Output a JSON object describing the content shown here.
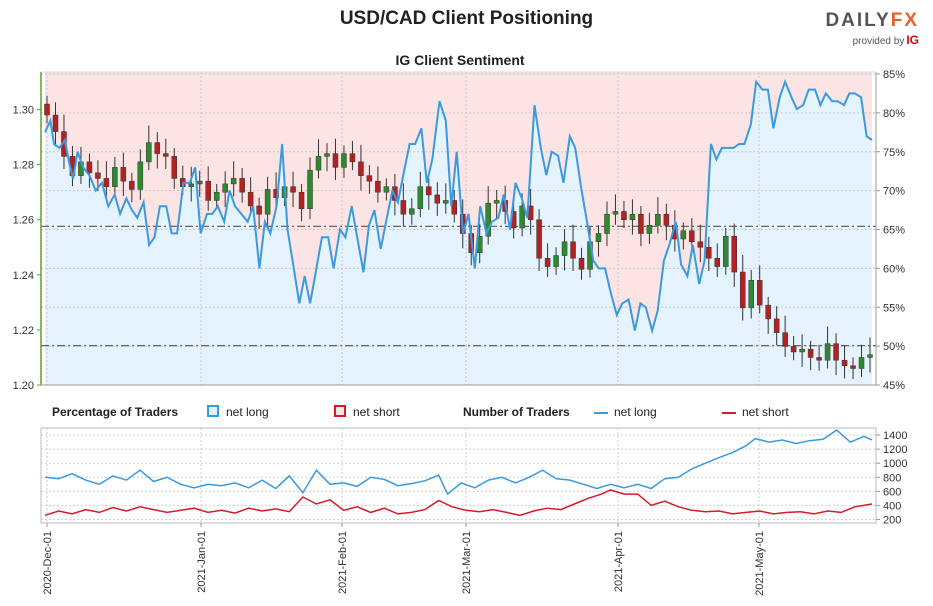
{
  "title": "USD/CAD Client Positioning",
  "subtitle": "IG Client Sentiment",
  "logo": {
    "brand_left": "DAILY",
    "brand_right": "FX",
    "provided_by": "provided by",
    "provider": "IG"
  },
  "legend": {
    "pct_heading": "Percentage of Traders",
    "pct_long": "net long",
    "pct_short": "net short",
    "num_heading": "Number of Traders",
    "num_long": "net long",
    "num_short": "net short"
  },
  "colors": {
    "long": "#3a9ae0",
    "short": "#d8192a",
    "long_fill": "#e4f3fd",
    "short_fill": "#fde4e4",
    "candle_up": "#2f8a2f",
    "candle_down": "#b22222",
    "axis_green": "#5aa02c"
  },
  "chart_data": [
    {
      "type": "candlestick",
      "name": "USD/CAD",
      "x_ticks": [
        "2020-Dec-01",
        "2021-Jan-01",
        "2021-Feb-01",
        "2021-Mar-01",
        "2021-Apr-01",
        "2021-May-01"
      ],
      "y_left": {
        "ticks": [
          "1.20",
          "1.22",
          "1.24",
          "1.26",
          "1.28",
          "1.30"
        ],
        "range": [
          1.2,
          1.31
        ]
      },
      "y_right": {
        "ticks": [
          "45%",
          "50%",
          "55%",
          "60%",
          "65%",
          "70%",
          "75%",
          "80%",
          "85%"
        ],
        "range": [
          45,
          85
        ]
      },
      "reference_lines": [
        1.2576,
        1.2143
      ],
      "net_long_pct_series": [
        [
          0,
          77.5
        ],
        [
          0.6,
          79
        ],
        [
          1,
          76
        ],
        [
          1.6,
          75.5
        ],
        [
          2.2,
          76.5
        ],
        [
          2.6,
          74
        ],
        [
          3.1,
          71.5
        ],
        [
          3.6,
          75
        ],
        [
          4.2,
          73
        ],
        [
          4.9,
          72
        ],
        [
          5.6,
          70
        ],
        [
          6.3,
          71
        ],
        [
          7.0,
          68
        ],
        [
          7.7,
          69.5
        ],
        [
          8.3,
          67
        ],
        [
          9.0,
          69
        ],
        [
          9.6,
          67.5
        ],
        [
          10.2,
          66.5
        ],
        [
          10.9,
          68.5
        ],
        [
          11.5,
          63
        ],
        [
          12.1,
          64
        ],
        [
          12.7,
          68
        ],
        [
          13.4,
          68
        ],
        [
          14.0,
          64.5
        ],
        [
          14.6,
          64.5
        ],
        [
          15.3,
          71
        ],
        [
          16.0,
          71
        ],
        [
          16.6,
          73
        ],
        [
          17.2,
          64.5
        ],
        [
          17.9,
          67
        ],
        [
          18.5,
          67
        ],
        [
          19.1,
          68
        ],
        [
          19.8,
          66
        ],
        [
          20.4,
          70
        ],
        [
          21.0,
          68
        ],
        [
          21.7,
          67
        ],
        [
          22.4,
          66
        ],
        [
          23.0,
          68
        ],
        [
          23.7,
          60
        ],
        [
          24.3,
          66
        ],
        [
          24.9,
          64.5
        ],
        [
          25.6,
          68
        ],
        [
          26.2,
          76
        ],
        [
          26.8,
          65
        ],
        [
          27.5,
          60
        ],
        [
          28.1,
          55.5
        ],
        [
          28.7,
          59
        ],
        [
          29.3,
          55.5
        ],
        [
          30.0,
          60
        ],
        [
          30.6,
          64
        ],
        [
          31.3,
          64
        ],
        [
          31.9,
          60
        ],
        [
          32.6,
          65
        ],
        [
          33.2,
          64
        ],
        [
          33.9,
          68
        ],
        [
          34.5,
          64
        ],
        [
          35.2,
          59.5
        ],
        [
          35.8,
          65.5
        ],
        [
          36.4,
          67.5
        ],
        [
          37.1,
          62.5
        ],
        [
          37.7,
          66
        ],
        [
          38.4,
          70
        ],
        [
          39.0,
          68.5
        ],
        [
          39.6,
          72
        ],
        [
          40.3,
          76
        ],
        [
          40.9,
          76
        ],
        [
          41.6,
          78
        ],
        [
          42.2,
          71
        ],
        [
          42.8,
          74
        ],
        [
          43.6,
          81.5
        ],
        [
          44.3,
          79
        ],
        [
          44.9,
          68
        ],
        [
          45.5,
          75
        ],
        [
          46.2,
          64.5
        ],
        [
          46.8,
          67
        ],
        [
          47.5,
          60
        ],
        [
          48.1,
          68
        ],
        [
          48.8,
          64.5
        ],
        [
          49.4,
          66
        ],
        [
          50.1,
          66.5
        ],
        [
          50.7,
          69.5
        ],
        [
          51.4,
          65
        ],
        [
          52.0,
          71
        ],
        [
          52.7,
          69
        ],
        [
          53.3,
          66.5
        ],
        [
          54.1,
          81
        ],
        [
          54.8,
          75.5
        ],
        [
          55.4,
          72
        ],
        [
          56.0,
          75
        ],
        [
          56.7,
          74.5
        ],
        [
          57.3,
          71
        ],
        [
          58.0,
          77
        ],
        [
          58.6,
          75.5
        ],
        [
          59.3,
          70
        ],
        [
          59.9,
          66
        ],
        [
          60.6,
          61
        ],
        [
          61.2,
          60
        ],
        [
          61.9,
          60
        ],
        [
          62.5,
          57
        ],
        [
          63.2,
          54
        ],
        [
          63.8,
          55.5
        ],
        [
          64.5,
          56
        ],
        [
          65.2,
          52
        ],
        [
          65.8,
          55.5
        ],
        [
          66.4,
          55
        ],
        [
          67.1,
          52
        ],
        [
          67.7,
          54.5
        ],
        [
          68.4,
          61
        ],
        [
          69.0,
          63
        ],
        [
          69.7,
          66
        ],
        [
          70.3,
          60.5
        ],
        [
          71.0,
          59
        ],
        [
          71.6,
          63
        ],
        [
          72.3,
          58
        ],
        [
          72.9,
          61
        ],
        [
          73.6,
          76
        ],
        [
          74.2,
          74
        ],
        [
          74.8,
          75.5
        ],
        [
          75.4,
          75.5
        ],
        [
          76.1,
          75.5
        ],
        [
          76.7,
          76
        ],
        [
          77.3,
          76
        ],
        [
          78.0,
          78.5
        ],
        [
          78.6,
          84
        ],
        [
          79.3,
          83
        ],
        [
          79.9,
          83
        ],
        [
          80.5,
          78
        ],
        [
          81.2,
          82
        ],
        [
          81.8,
          84
        ],
        [
          82.5,
          82
        ],
        [
          83.1,
          80.5
        ],
        [
          83.8,
          81
        ],
        [
          84.4,
          83
        ],
        [
          85.1,
          83
        ],
        [
          85.7,
          81
        ],
        [
          86.3,
          82.5
        ],
        [
          87.0,
          81.5
        ],
        [
          87.6,
          81.5
        ],
        [
          88.3,
          81
        ],
        [
          88.9,
          82.5
        ],
        [
          89.5,
          82.5
        ],
        [
          90.2,
          82
        ],
        [
          90.8,
          77
        ],
        [
          91.4,
          76.5
        ]
      ]
    },
    {
      "type": "line",
      "name": "Number of Traders",
      "y_ticks": [
        "200",
        "400",
        "600",
        "800",
        "1000",
        "1200",
        "1400"
      ],
      "y_range": [
        150,
        1500
      ],
      "series": [
        {
          "name": "net long",
          "values": [
            [
              0,
              800
            ],
            [
              1.5,
              780
            ],
            [
              3,
              850
            ],
            [
              4.5,
              760
            ],
            [
              6,
              700
            ],
            [
              7.5,
              820
            ],
            [
              9,
              760
            ],
            [
              10.5,
              900
            ],
            [
              12,
              740
            ],
            [
              13.5,
              800
            ],
            [
              15,
              700
            ],
            [
              16.5,
              650
            ],
            [
              18,
              700
            ],
            [
              19.5,
              680
            ],
            [
              21,
              720
            ],
            [
              22.5,
              650
            ],
            [
              24,
              760
            ],
            [
              25.5,
              640
            ],
            [
              27,
              820
            ],
            [
              28.5,
              580
            ],
            [
              30,
              900
            ],
            [
              31.5,
              700
            ],
            [
              33,
              720
            ],
            [
              34.5,
              670
            ],
            [
              36,
              800
            ],
            [
              37.5,
              770
            ],
            [
              39,
              680
            ],
            [
              40.5,
              710
            ],
            [
              42,
              750
            ],
            [
              43.5,
              830
            ],
            [
              44.5,
              560
            ],
            [
              46,
              720
            ],
            [
              47.5,
              650
            ],
            [
              49,
              760
            ],
            [
              50.5,
              800
            ],
            [
              52,
              720
            ],
            [
              53.5,
              800
            ],
            [
              55,
              900
            ],
            [
              56.5,
              780
            ],
            [
              58,
              760
            ],
            [
              59.5,
              700
            ],
            [
              61,
              640
            ],
            [
              62.5,
              700
            ],
            [
              64,
              650
            ],
            [
              65.5,
              700
            ],
            [
              67,
              640
            ],
            [
              68.5,
              780
            ],
            [
              70,
              800
            ],
            [
              71.5,
              920
            ],
            [
              73,
              1000
            ],
            [
              74.5,
              1080
            ],
            [
              76,
              1150
            ],
            [
              77.5,
              1250
            ],
            [
              78.5,
              1350
            ],
            [
              80,
              1300
            ],
            [
              81.5,
              1330
            ],
            [
              83,
              1280
            ],
            [
              84.5,
              1320
            ],
            [
              86,
              1340
            ],
            [
              87.5,
              1470
            ],
            [
              89,
              1300
            ],
            [
              90.5,
              1380
            ],
            [
              91.4,
              1330
            ]
          ]
        },
        {
          "name": "net short",
          "values": [
            [
              0,
              260
            ],
            [
              1.5,
              320
            ],
            [
              3,
              280
            ],
            [
              4.5,
              340
            ],
            [
              6,
              300
            ],
            [
              7.5,
              370
            ],
            [
              9,
              320
            ],
            [
              10.5,
              380
            ],
            [
              12,
              340
            ],
            [
              13.5,
              300
            ],
            [
              15,
              330
            ],
            [
              16.5,
              360
            ],
            [
              18,
              300
            ],
            [
              19.5,
              330
            ],
            [
              21,
              290
            ],
            [
              22.5,
              360
            ],
            [
              24,
              320
            ],
            [
              25.5,
              350
            ],
            [
              27,
              310
            ],
            [
              28.5,
              520
            ],
            [
              30,
              420
            ],
            [
              31.5,
              480
            ],
            [
              33,
              330
            ],
            [
              34.5,
              380
            ],
            [
              36,
              300
            ],
            [
              37.5,
              360
            ],
            [
              39,
              280
            ],
            [
              40.5,
              300
            ],
            [
              42,
              340
            ],
            [
              43.5,
              470
            ],
            [
              45,
              380
            ],
            [
              46.5,
              330
            ],
            [
              48,
              310
            ],
            [
              49.5,
              340
            ],
            [
              51,
              300
            ],
            [
              52.5,
              260
            ],
            [
              54,
              320
            ],
            [
              55.5,
              360
            ],
            [
              57,
              340
            ],
            [
              58.5,
              420
            ],
            [
              60,
              500
            ],
            [
              61.5,
              560
            ],
            [
              62.5,
              620
            ],
            [
              64,
              560
            ],
            [
              65.5,
              560
            ],
            [
              67,
              400
            ],
            [
              68.5,
              460
            ],
            [
              70,
              380
            ],
            [
              71.5,
              330
            ],
            [
              73,
              310
            ],
            [
              74.5,
              320
            ],
            [
              76,
              280
            ],
            [
              77.5,
              300
            ],
            [
              79,
              320
            ],
            [
              80.5,
              280
            ],
            [
              82,
              300
            ],
            [
              83.5,
              310
            ],
            [
              85,
              280
            ],
            [
              86.5,
              320
            ],
            [
              88,
              300
            ],
            [
              89.5,
              380
            ],
            [
              91.4,
              420
            ]
          ]
        }
      ]
    }
  ]
}
